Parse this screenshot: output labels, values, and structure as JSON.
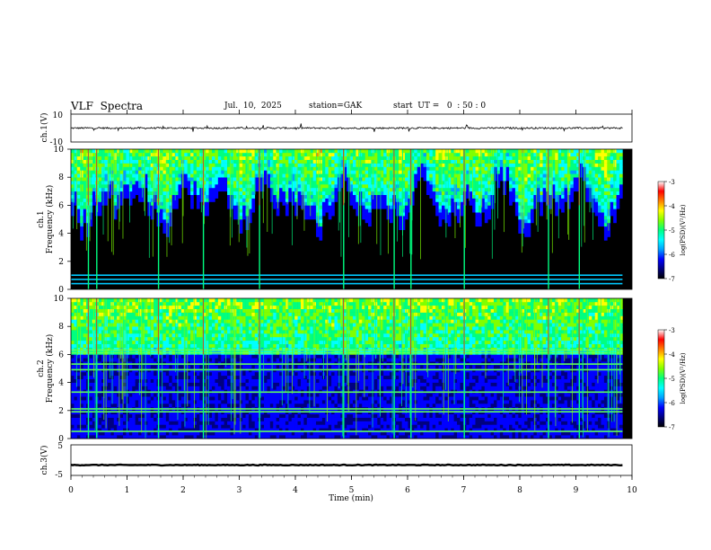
{
  "header": {
    "title": "VLF  Spectra",
    "date": "Jul.  10,  2025",
    "station": "station=GAK",
    "start_ut": "start  UT =   0  : 50 : 0"
  },
  "colors": {
    "background_low": "#000000",
    "palette": [
      "#000000",
      "#000080",
      "#0000ff",
      "#00a0ff",
      "#00ffff",
      "#00ff80",
      "#80ff00",
      "#ffff00",
      "#ff8000",
      "#ff0000",
      "#ffffff"
    ],
    "trace": "#000000"
  },
  "chart_data": [
    {
      "type": "line",
      "name": "ch1-waveform",
      "ylabel": "ch.1(V)",
      "ylim": [
        -10,
        10
      ],
      "y_ticks": [
        "10",
        "-10"
      ],
      "xlim": [
        0,
        10
      ],
      "baseline_value": 0,
      "grid": false
    },
    {
      "type": "heatmap",
      "name": "ch1-spectrogram",
      "ylabel_channel": "ch.1",
      "ylabel": "Frequency  (kHz)",
      "ylim": [
        0,
        10
      ],
      "y_ticks": [
        "0",
        "2",
        "4",
        "6",
        "8",
        "10"
      ],
      "xlim": [
        0,
        9.83
      ],
      "colorbar": {
        "label": "log(PSD)(V²/Hz)",
        "range": [
          -7,
          -3
        ],
        "ticks": [
          "-3",
          "-4",
          "-5",
          "-6",
          "-7"
        ]
      },
      "strong_burst_times_min": [
        0.3,
        0.45,
        1.55,
        2.35,
        3.35,
        4.85,
        5.75,
        6.05,
        7.0,
        8.5,
        9.05
      ],
      "strong_band_khz": [
        0.4,
        0.7,
        1.0
      ]
    },
    {
      "type": "heatmap",
      "name": "ch2-spectrogram",
      "ylabel_channel": "ch.2",
      "ylabel": "Frequency  (kHz)",
      "ylim": [
        0,
        10
      ],
      "y_ticks": [
        "0",
        "2",
        "4",
        "6",
        "8",
        "10"
      ],
      "xlim": [
        0,
        9.83
      ],
      "colorbar": {
        "label": "log(PSD)(V²/Hz)",
        "range": [
          -7,
          -3
        ],
        "ticks": [
          "-3",
          "-4",
          "-5",
          "-6",
          "-7"
        ]
      },
      "strong_burst_times_min": [
        0.3,
        0.45,
        1.55,
        2.35,
        3.35,
        4.85,
        5.75,
        6.05,
        7.0,
        8.5,
        9.05
      ],
      "strong_band_khz": [
        0.5,
        1.9,
        2.1,
        3.3,
        4.9,
        5.3,
        6.1,
        6.3
      ]
    },
    {
      "type": "line",
      "name": "ch3-waveform",
      "ylabel": "ch.3(V)",
      "ylim": [
        -5,
        5
      ],
      "y_ticks": [
        "5",
        "-5"
      ],
      "xlim": [
        0,
        10
      ],
      "baseline_value": -1.6,
      "grid": false
    }
  ],
  "xaxis": {
    "label": "Time  (min)",
    "ticks": [
      "0",
      "1",
      "2",
      "3",
      "4",
      "5",
      "6",
      "7",
      "8",
      "9",
      "10"
    ],
    "range": [
      0,
      10
    ]
  }
}
